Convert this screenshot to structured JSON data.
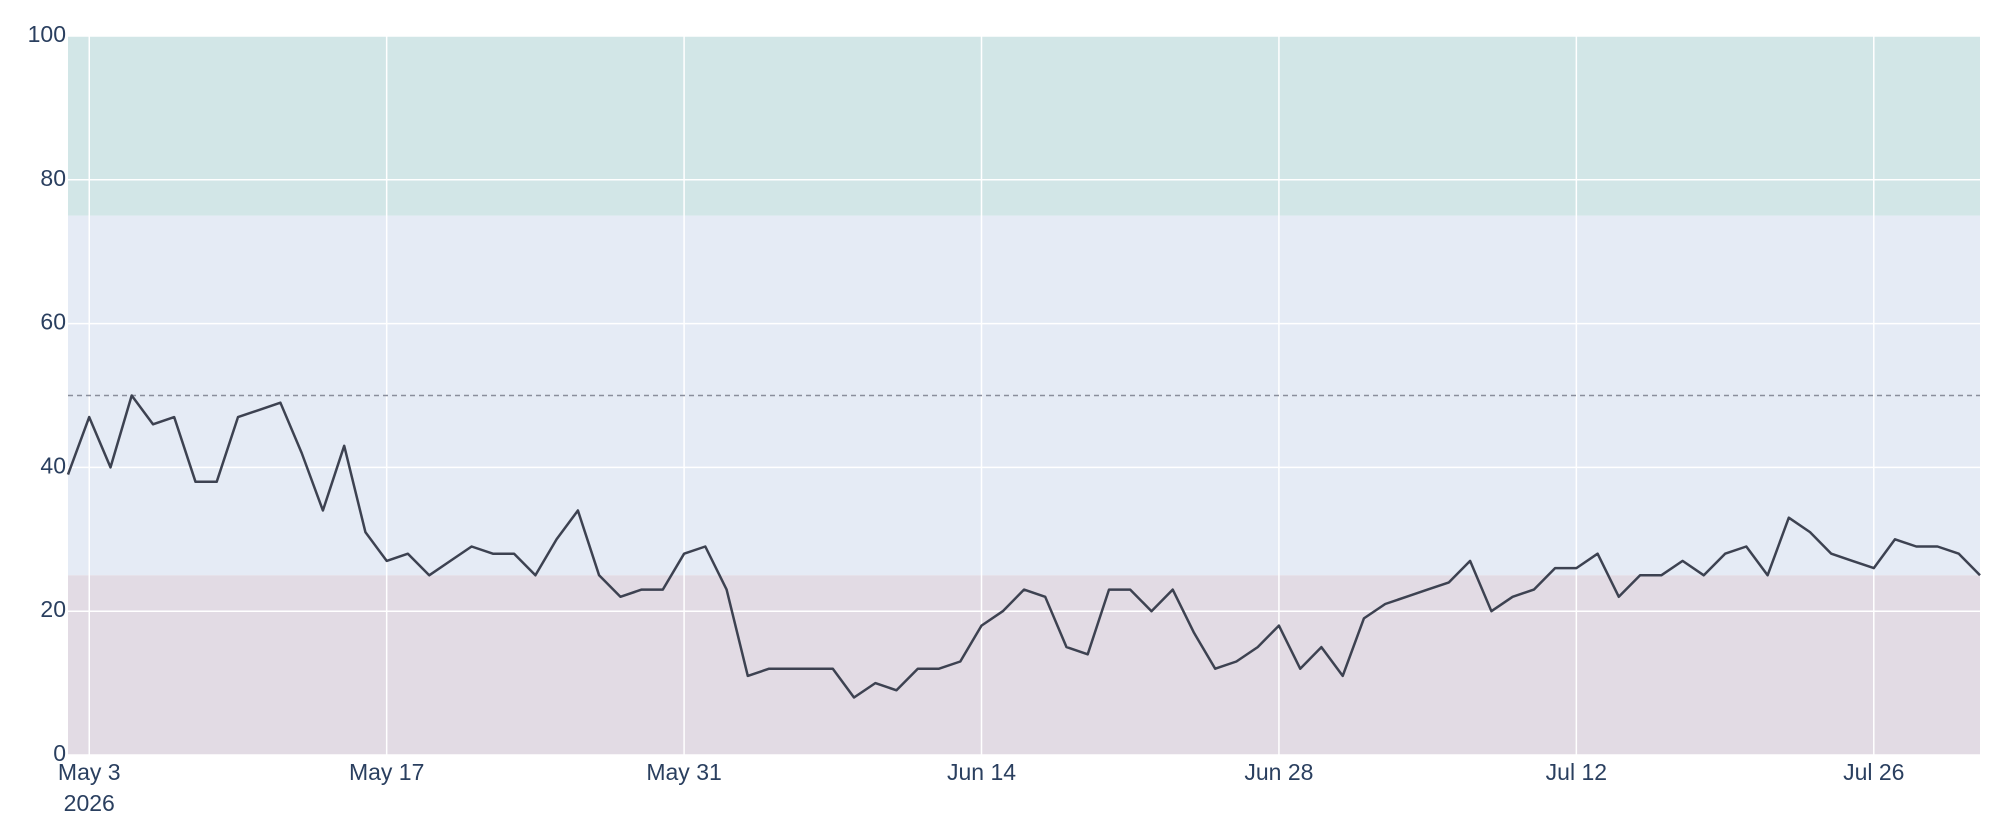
{
  "chart_data": {
    "type": "line",
    "x": [
      "2026-05-02",
      "2026-05-03",
      "2026-05-04",
      "2026-05-05",
      "2026-05-06",
      "2026-05-07",
      "2026-05-08",
      "2026-05-09",
      "2026-05-10",
      "2026-05-11",
      "2026-05-12",
      "2026-05-13",
      "2026-05-14",
      "2026-05-15",
      "2026-05-16",
      "2026-05-17",
      "2026-05-18",
      "2026-05-19",
      "2026-05-20",
      "2026-05-21",
      "2026-05-22",
      "2026-05-23",
      "2026-05-24",
      "2026-05-25",
      "2026-05-26",
      "2026-05-27",
      "2026-05-28",
      "2026-05-29",
      "2026-05-30",
      "2026-05-31",
      "2026-06-01",
      "2026-06-02",
      "2026-06-03",
      "2026-06-04",
      "2026-06-05",
      "2026-06-06",
      "2026-06-07",
      "2026-06-08",
      "2026-06-09",
      "2026-06-10",
      "2026-06-11",
      "2026-06-12",
      "2026-06-13",
      "2026-06-14",
      "2026-06-15",
      "2026-06-16",
      "2026-06-17",
      "2026-06-18",
      "2026-06-19",
      "2026-06-20",
      "2026-06-21",
      "2026-06-22",
      "2026-06-23",
      "2026-06-24",
      "2026-06-25",
      "2026-06-26",
      "2026-06-27",
      "2026-06-28",
      "2026-06-29",
      "2026-06-30",
      "2026-07-01",
      "2026-07-02",
      "2026-07-03",
      "2026-07-04",
      "2026-07-05",
      "2026-07-06",
      "2026-07-07",
      "2026-07-08",
      "2026-07-09",
      "2026-07-10",
      "2026-07-11",
      "2026-07-12",
      "2026-07-13",
      "2026-07-14",
      "2026-07-15",
      "2026-07-16",
      "2026-07-17",
      "2026-07-18",
      "2026-07-19",
      "2026-07-20",
      "2026-07-21",
      "2026-07-22",
      "2026-07-23",
      "2026-07-24",
      "2026-07-25",
      "2026-07-26",
      "2026-07-27",
      "2026-07-28",
      "2026-07-29",
      "2026-07-30",
      "2026-07-31"
    ],
    "series": [
      {
        "color": "#3d4251",
        "values": [
          39,
          47,
          40,
          50,
          46,
          47,
          38,
          38,
          47,
          48,
          49,
          42,
          34,
          43,
          31,
          27,
          28,
          25,
          27,
          29,
          28,
          28,
          25,
          30,
          34,
          25,
          22,
          23,
          23,
          28,
          29,
          23,
          11,
          12,
          12,
          12,
          12,
          8,
          10,
          9,
          12,
          12,
          13,
          18,
          20,
          23,
          22,
          15,
          14,
          23,
          23,
          20,
          23,
          17,
          12,
          13,
          15,
          18,
          12,
          15,
          11,
          19,
          21,
          22,
          23,
          24,
          27,
          20,
          22,
          23,
          26,
          26,
          28,
          22,
          25,
          25,
          27,
          25,
          28,
          29,
          25,
          33,
          31,
          28,
          27,
          26,
          30,
          29,
          29,
          28,
          25
        ]
      }
    ],
    "xlim": [
      "2026-05-02",
      "2026-07-31"
    ],
    "xticks": [
      {
        "value": "2026-05-03",
        "label": "May 3\n2026"
      },
      {
        "value": "2026-05-17",
        "label": "May 17"
      },
      {
        "value": "2026-05-31",
        "label": "May 31"
      },
      {
        "value": "2026-06-14",
        "label": "Jun 14"
      },
      {
        "value": "2026-06-28",
        "label": "Jun 28"
      },
      {
        "value": "2026-07-12",
        "label": "Jul 12"
      },
      {
        "value": "2026-07-26",
        "label": "Jul 26"
      }
    ],
    "ylim": [
      0,
      100
    ],
    "yticks": [
      0,
      20,
      40,
      60,
      80,
      100
    ],
    "grid": true,
    "bands": [
      {
        "range": [
          75,
          100
        ],
        "color": "#d2e6e7"
      },
      {
        "range": [
          25,
          75
        ],
        "color": "#e5ebf5"
      },
      {
        "range": [
          0,
          25
        ],
        "color": "#e2dbe4"
      }
    ],
    "reference_line": {
      "value": 50,
      "color": "#8a8e9c"
    }
  }
}
